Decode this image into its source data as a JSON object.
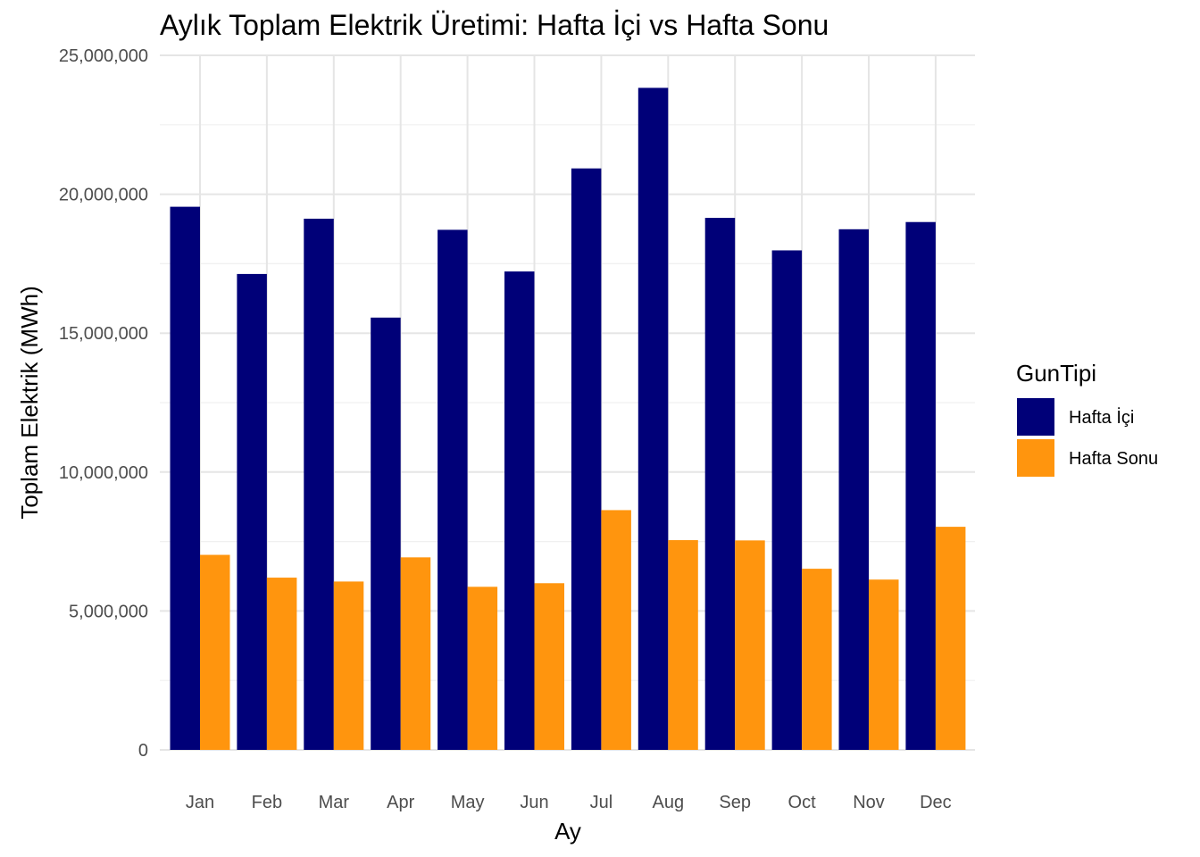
{
  "chart_data": {
    "type": "bar",
    "title": "Aylık Toplam Elektrik Üretimi: Hafta İçi vs Hafta Sonu",
    "xlabel": "Ay",
    "ylabel": "Toplam Elektrik (MWh)",
    "categories": [
      "Jan",
      "Feb",
      "Mar",
      "Apr",
      "May",
      "Jun",
      "Jul",
      "Aug",
      "Sep",
      "Oct",
      "Nov",
      "Dec"
    ],
    "ylim": [
      0,
      25000000
    ],
    "yticks": [
      0,
      5000000,
      10000000,
      15000000,
      20000000,
      25000000
    ],
    "ytick_labels": [
      "0",
      "5,000,000",
      "10,000,000",
      "15,000,000",
      "20,000,000",
      "25,000,000"
    ],
    "grid": true,
    "legend": {
      "title": "GunTipi",
      "position": "right"
    },
    "series": [
      {
        "name": "Hafta İçi",
        "color": "#000078",
        "values": [
          19550000,
          17130000,
          19120000,
          15560000,
          18720000,
          17220000,
          20930000,
          23830000,
          19150000,
          17980000,
          18740000,
          19000000
        ]
      },
      {
        "name": "Hafta Sonu",
        "color": "#ff950e",
        "values": [
          7020000,
          6200000,
          6060000,
          6930000,
          5870000,
          6000000,
          8630000,
          7550000,
          7540000,
          6520000,
          6130000,
          8030000
        ]
      }
    ]
  }
}
